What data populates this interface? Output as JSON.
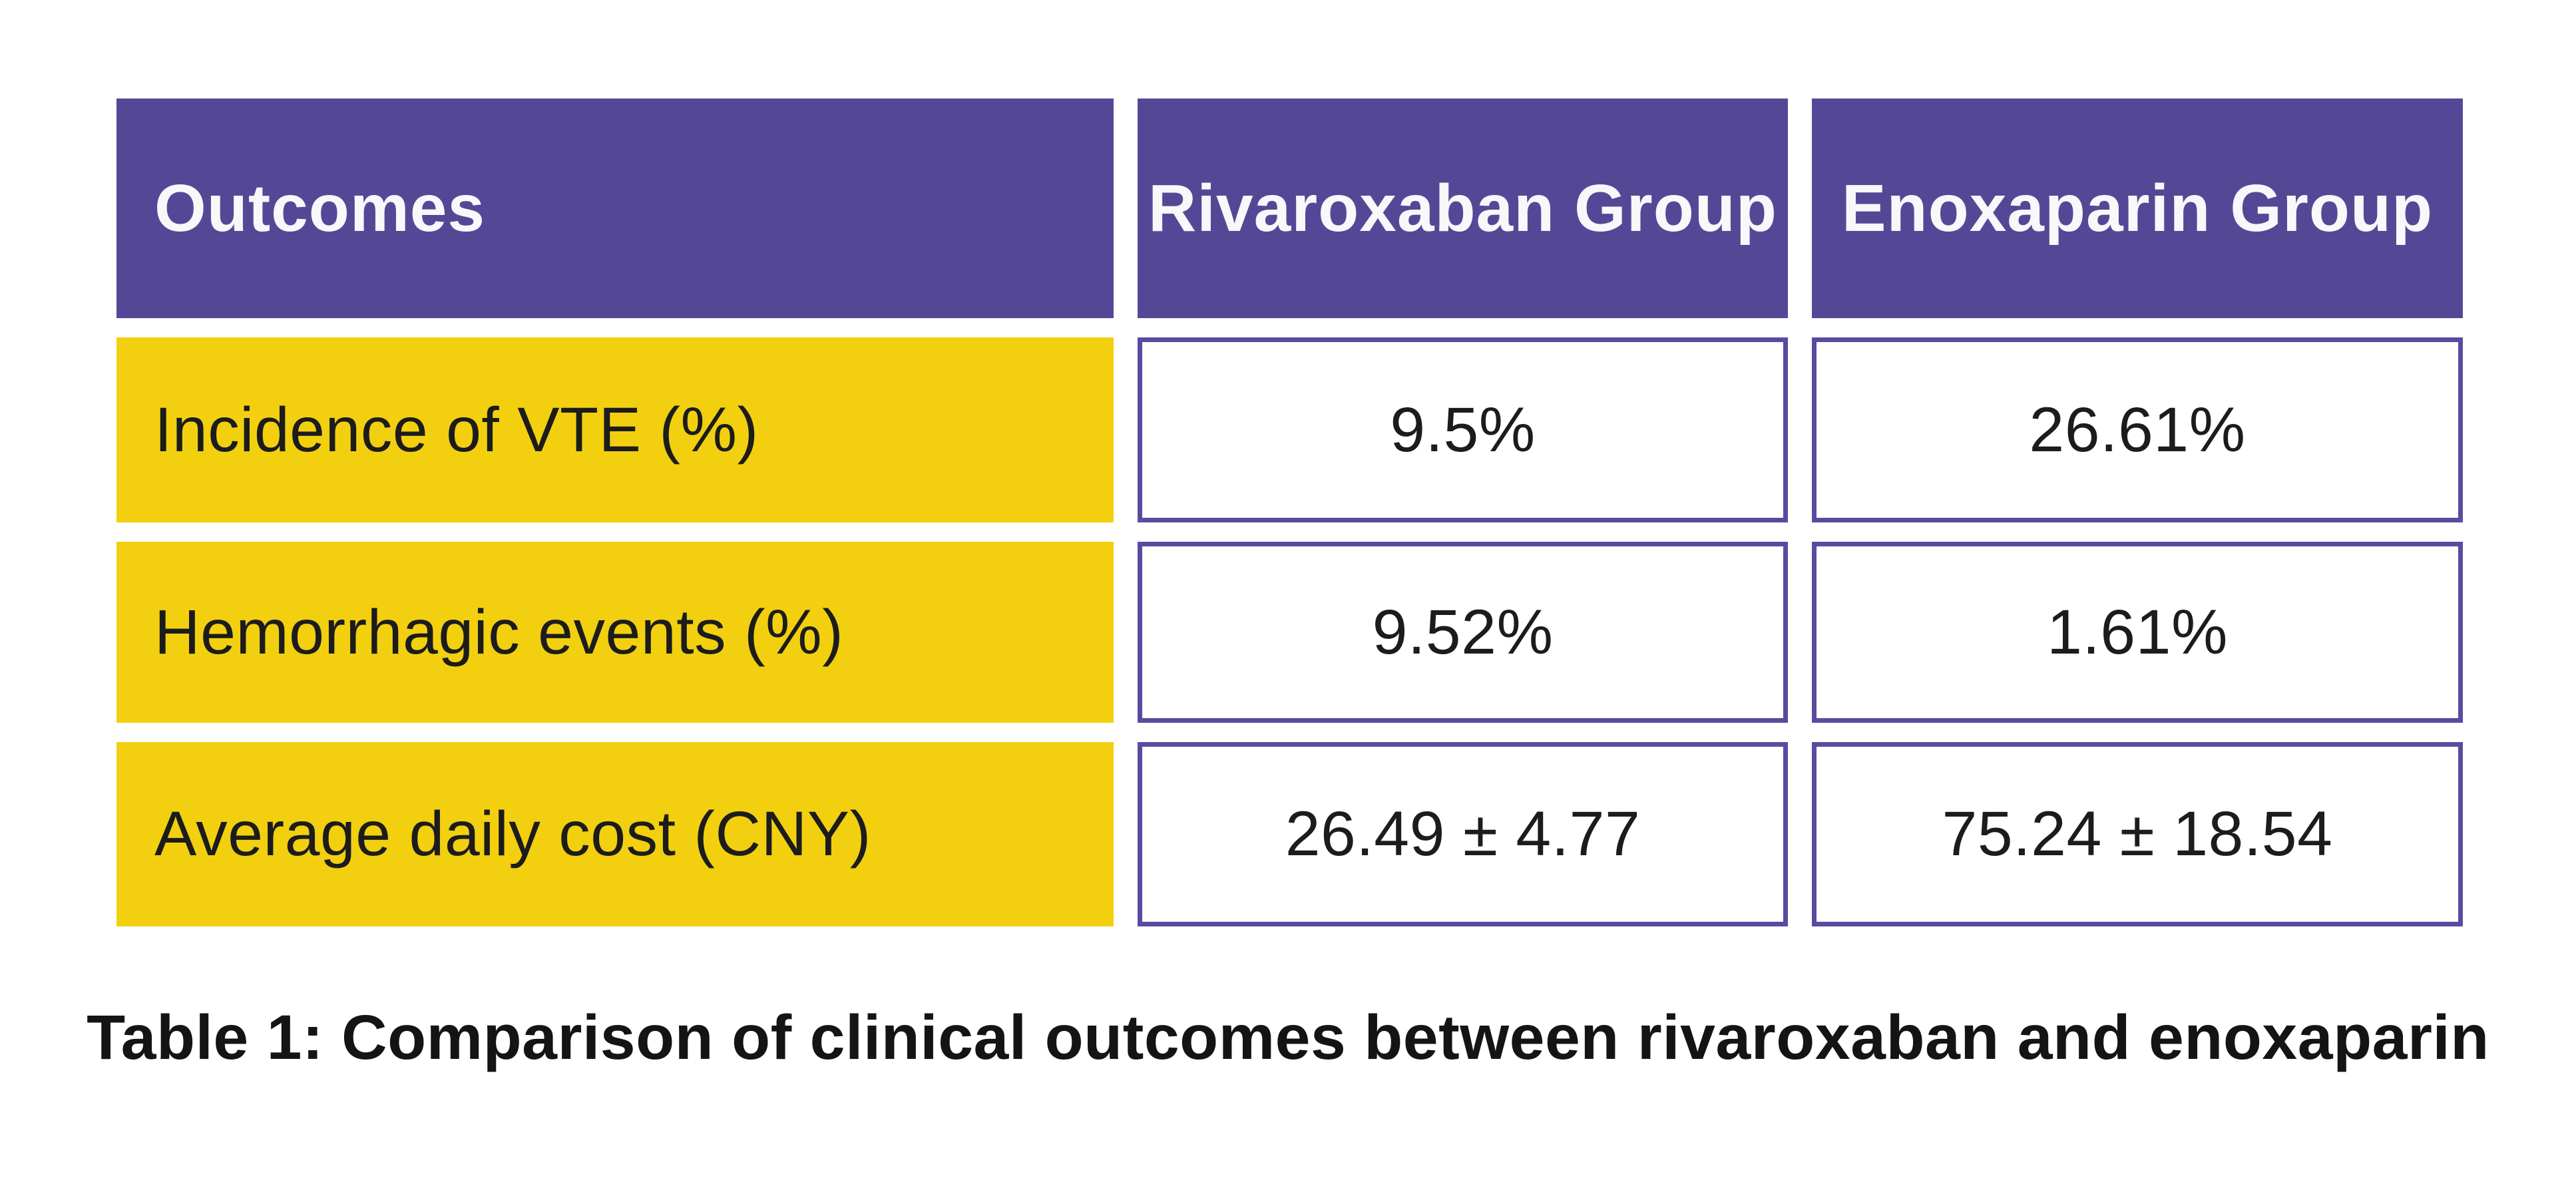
{
  "chart_data": {
    "type": "table",
    "title": "Table 1: Comparison of clinical outcomes between rivaroxaban and enoxaparin",
    "columns": [
      "Outcomes",
      "Rivaroxaban Group",
      "Enoxaparin Group"
    ],
    "rows": [
      [
        "Incidence of VTE (%)",
        "9.5%",
        "26.61%"
      ],
      [
        "Hemorrhagic events (%)",
        "9.52%",
        "1.61%"
      ],
      [
        "Average daily cost (CNY)",
        "26.49 ± 4.77",
        "75.24 ± 18.54"
      ]
    ],
    "layout_hints": {
      "header_style": "solid purple banner cells",
      "row_label_style": "solid yellow cells, left aligned",
      "value_cell_style": "white cells with purple border, centered",
      "caption_position": "bottom center"
    }
  },
  "caption": "Table 1: Comparison of clinical outcomes between rivaroxaban and enoxaparin",
  "colors": {
    "header_bg": "#544896",
    "row_label_bg": "#F2D00F",
    "cell_border": "#564CA0",
    "header_text": "#F8F7FA",
    "body_text": "#1C1C1C",
    "caption_text": "#141414",
    "page_bg": "#FFFFFF"
  }
}
